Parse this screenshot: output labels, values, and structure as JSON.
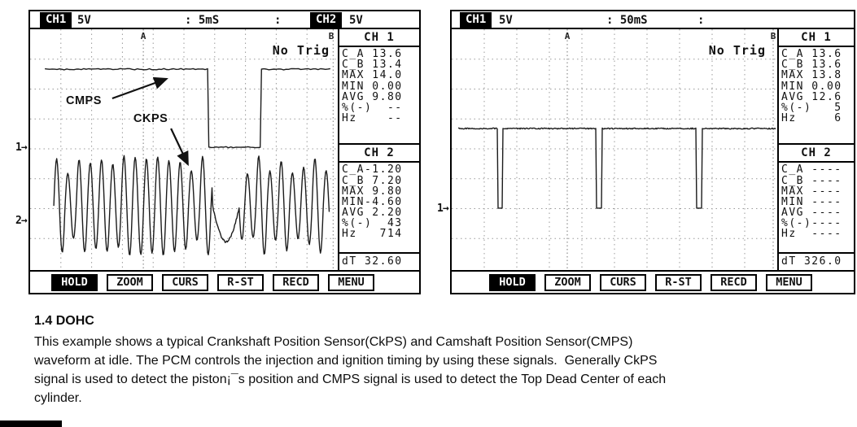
{
  "left_scope": {
    "topbar": {
      "ch1_chip": "CH1",
      "ch1_scale": "5V",
      "timebase": ": 5mS",
      "trigger_colon": ":",
      "ch2_chip": "CH2",
      "ch2_scale": "5V"
    },
    "display": {
      "no_trig": "No Trig",
      "cursor_a": "A",
      "cursor_b": "B",
      "label_cmps": "CMPS",
      "label_ckps": "CKPS",
      "marker_ch1": "1→",
      "marker_ch2": "2→"
    },
    "panel": {
      "ch1_title": "CH 1",
      "ch1_values": [
        "C_A 13.6",
        "C_B 13.4",
        "MAX 14.0",
        "MIN 0.00",
        "AVG 9.80",
        "%(-)  --",
        "Hz    --"
      ],
      "ch2_title": "CH 2",
      "ch2_values": [
        "C_A-1.20",
        "C_B 7.20",
        "MAX 9.80",
        "MIN-4.60",
        "AVG 2.20",
        "%(-)  43",
        "Hz   714"
      ],
      "dt": "dT 32.60"
    },
    "menu": [
      "HOLD",
      "ZOOM",
      "CURS",
      "R-ST",
      "RECD",
      "MENU"
    ],
    "active_menu": "HOLD"
  },
  "right_scope": {
    "topbar": {
      "ch1_chip": "CH1",
      "ch1_scale": "5V",
      "timebase": ": 50mS",
      "trigger_colon": ":"
    },
    "display": {
      "no_trig": "No Trig",
      "cursor_a": "A",
      "cursor_b": "B",
      "marker_ch1": "1→"
    },
    "panel": {
      "ch1_title": "CH 1",
      "ch1_values": [
        "C_A 13.6",
        "C_B 13.6",
        "MAX 13.8",
        "MIN 0.00",
        "AVG 12.6",
        "%(-)   5",
        "Hz     6"
      ],
      "ch2_title": "CH 2",
      "ch2_values": [
        "C_A ----",
        "C_B ----",
        "MAX ----",
        "MIN ----",
        "AVG ----",
        "%(-)----",
        "Hz  ----"
      ],
      "dt": "dT 326.0"
    },
    "menu": [
      "HOLD",
      "ZOOM",
      "CURS",
      "R-ST",
      "RECD",
      "MENU"
    ],
    "active_menu": "HOLD"
  },
  "caption": {
    "heading": "1.4 DOHC",
    "body_lines": [
      "This example shows a typical Crankshaft Position Sensor(CkPS) and Camshaft Position Sensor(CMPS)",
      "waveform at idle. The PCM controls the injection and ignition timing by using these signals.  Generally CkPS",
      "signal is used to detect the piston¡¯s position and CMPS signal is used to detect the Top Dead Center of each",
      "cylinder."
    ]
  },
  "chart_data": [
    {
      "type": "line",
      "title": "Left oscilloscope screen: CMPS (CH1) and CKPS (CH2) waveforms at idle",
      "timebase": "5 mS/div",
      "ch1_scale": "5 V/div",
      "ch2_scale": "5 V/div",
      "trigger": "No Trig",
      "grid_divs": [
        10,
        8
      ],
      "cursors": {
        "a": 0.368,
        "b": 0.985
      },
      "traces": [
        {
          "name": "CMPS square wave (CH1)",
          "kind": "segments",
          "noise": 1.6,
          "points": [
            [
              0.048,
              0.167
            ],
            [
              0.577,
              0.167
            ],
            [
              0.581,
              0.493
            ],
            [
              0.748,
              0.493
            ],
            [
              0.752,
              0.167
            ],
            [
              0.976,
              0.167
            ]
          ]
        },
        {
          "name": "CKPS toothed AC wave (CH2)",
          "kind": "osc",
          "x0": 0.077,
          "x1": 0.973,
          "mid": 0.738,
          "amp": 0.17,
          "period": 0.0365,
          "gap_x0": 0.593,
          "gap_x1": 0.681,
          "gap_level": 0.888
        }
      ],
      "arrows": [
        {
          "x1": 0.267,
          "y1": 0.289,
          "x2": 0.444,
          "y2": 0.207
        },
        {
          "x1": 0.458,
          "y1": 0.415,
          "x2": 0.513,
          "y2": 0.565
        }
      ],
      "measurements": {
        "ch1": {
          "C_A": 13.6,
          "C_B": 13.4,
          "MAX": 14.0,
          "MIN": 0.0,
          "AVG": 9.8
        },
        "ch2": {
          "C_A": -1.2,
          "C_B": 7.2,
          "MAX": 9.8,
          "MIN": -4.6,
          "AVG": 2.2,
          "pct_minus": 43,
          "Hz": 714
        },
        "dT": 32.6
      }
    },
    {
      "type": "line",
      "title": "Right oscilloscope screen: CMPS (CH1) pulse train at idle",
      "timebase": "50 mS/div",
      "ch1_scale": "5 V/div",
      "trigger": "No Trig",
      "grid_divs": [
        10,
        8
      ],
      "cursors": {
        "a": 0.355,
        "b": 0.9875
      },
      "traces": [
        {
          "name": "CMPS pulse train (CH1)",
          "kind": "pulse",
          "noise": 1.4,
          "x0": 0.02,
          "x1": 0.995,
          "base": 0.415,
          "low": 0.748,
          "pulses": [
            0.14,
            0.445,
            0.7525
          ],
          "pulse_w": 0.016
        }
      ],
      "measurements": {
        "ch1": {
          "C_A": 13.6,
          "C_B": 13.6,
          "MAX": 13.8,
          "MIN": 0.0,
          "AVG": 12.6,
          "pct_minus": 5,
          "Hz": 6
        },
        "dT": 326.0
      }
    }
  ]
}
